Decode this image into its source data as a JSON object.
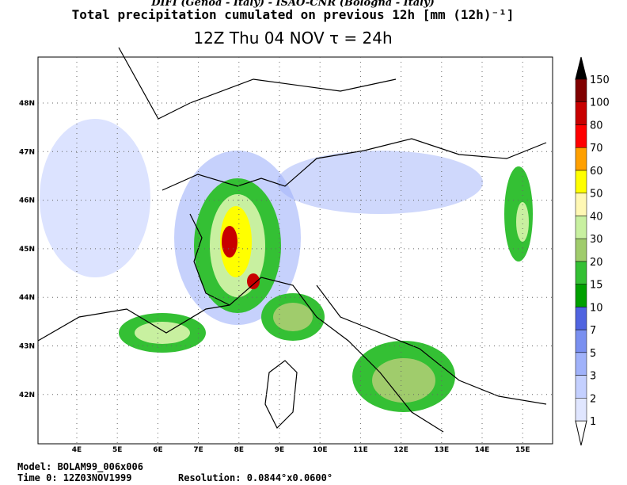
{
  "header": {
    "line1": "DIFI (Genoa - Italy)  -  ISAO-CNR (Bologna - Italy)",
    "line2": "Total precipitation cumulated on previous 12h [mm (12h)⁻¹]",
    "line3": "12Z Thu 04 NOV   τ = 24h"
  },
  "map": {
    "lat_ticks": [
      {
        "value": 48,
        "label": "48N"
      },
      {
        "value": 47,
        "label": "47N"
      },
      {
        "value": 46,
        "label": "46N"
      },
      {
        "value": 45,
        "label": "45N"
      },
      {
        "value": 44,
        "label": "44N"
      },
      {
        "value": 43,
        "label": "43N"
      },
      {
        "value": 42,
        "label": "42N"
      }
    ],
    "lon_ticks": [
      {
        "value": 4,
        "label": "4E"
      },
      {
        "value": 5,
        "label": "5E"
      },
      {
        "value": 6,
        "label": "6E"
      },
      {
        "value": 7,
        "label": "7E"
      },
      {
        "value": 8,
        "label": "8E"
      },
      {
        "value": 9,
        "label": "9E"
      },
      {
        "value": 10,
        "label": "10E"
      },
      {
        "value": 11,
        "label": "11E"
      },
      {
        "value": 12,
        "label": "12E"
      },
      {
        "value": 13,
        "label": "13E"
      },
      {
        "value": 14,
        "label": "14E"
      },
      {
        "value": 15,
        "label": "15E"
      }
    ]
  },
  "colorbar": {
    "levels": [
      1,
      2,
      3,
      5,
      7,
      10,
      15,
      20,
      30,
      40,
      50,
      60,
      70,
      80,
      100,
      150
    ],
    "colors": [
      "#e0e6ff",
      "#c4d0ff",
      "#a0b2fa",
      "#7a90f0",
      "#5064e0",
      "#00a000",
      "#34c034",
      "#a0cc6c",
      "#c8f0a0",
      "#fff8b4",
      "#ffff00",
      "#ffa000",
      "#ff0000",
      "#c80000",
      "#800000"
    ]
  },
  "footer": {
    "model": "Model: BOLAM99_006x006",
    "time": "Time 0: 12Z03NOV1999",
    "resolution": "Resolution: 0.0844°x0.0600°"
  }
}
